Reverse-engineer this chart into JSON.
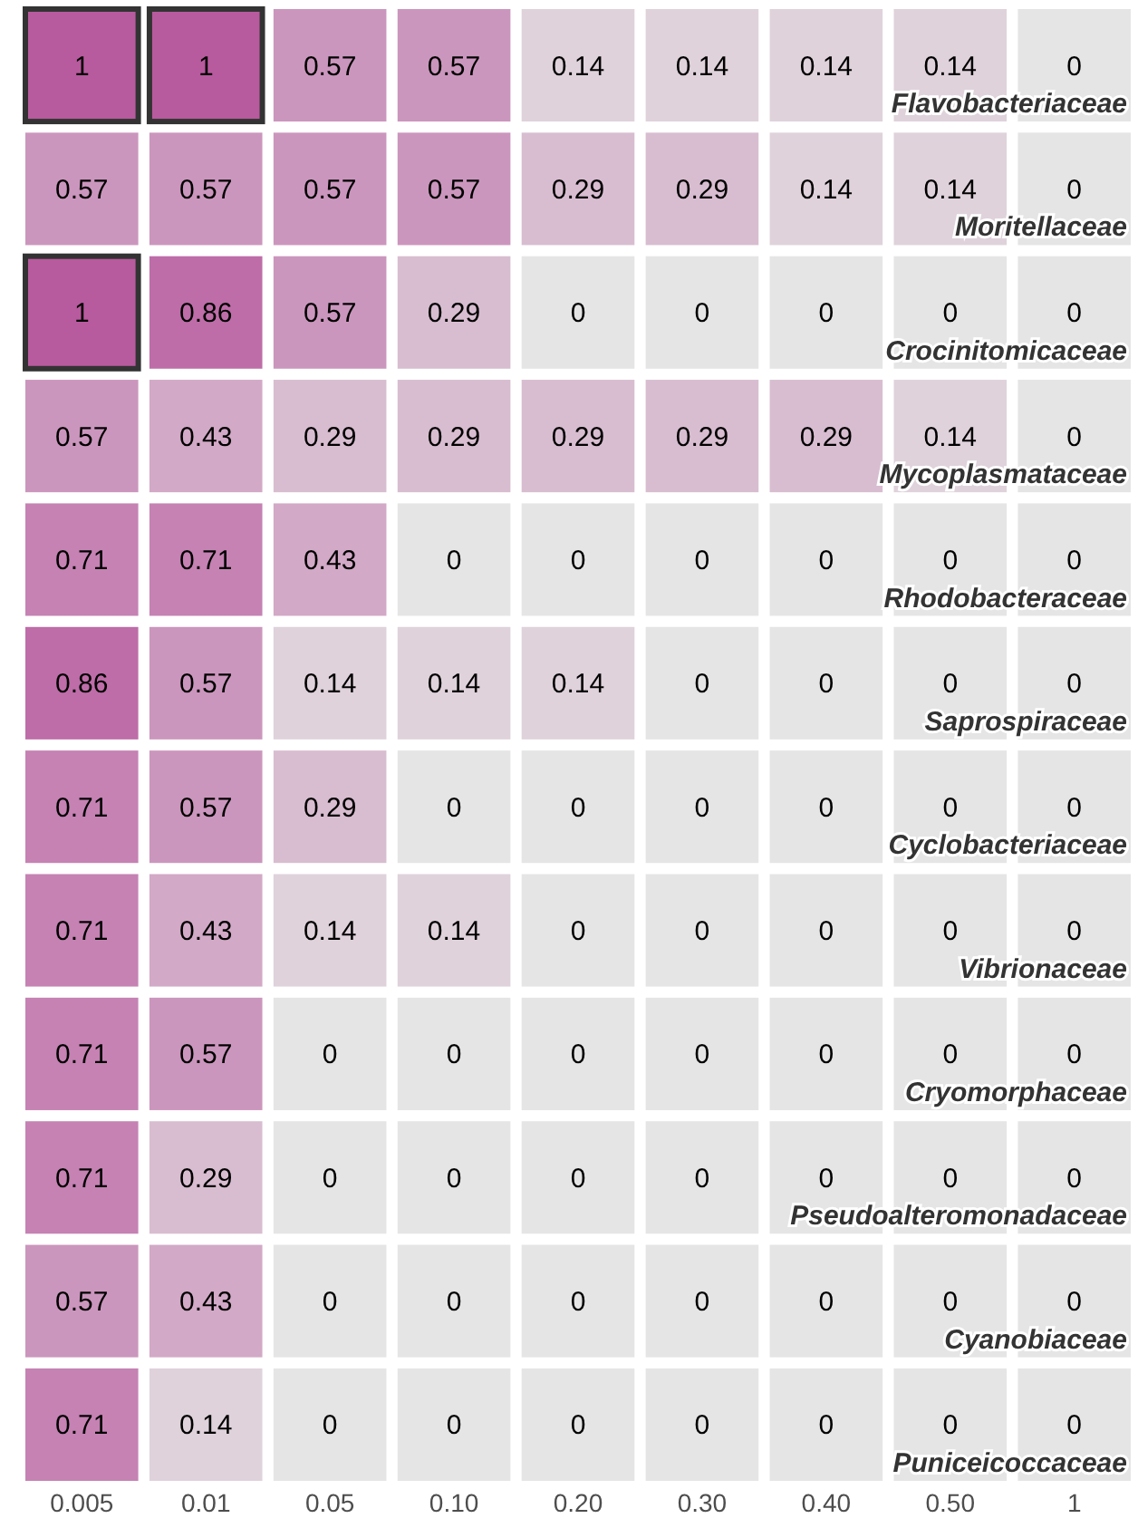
{
  "chart_data": {
    "type": "heatmap",
    "data_labels": true,
    "categories": [
      "0.005",
      "0.01",
      "0.05",
      "0.10",
      "0.20",
      "0.30",
      "0.40",
      "0.50",
      "1"
    ],
    "y_categories": [
      "Flavobacteriaceae",
      "Moritellaceae",
      "Crocinitomicaceae",
      "Mycoplasmataceae",
      "Rhodobacteraceae",
      "Saprospiraceae",
      "Cyclobacteriaceae",
      "Vibrionaceae",
      "Cryomorphaceae",
      "Pseudoalteromonadaceae",
      "Cyanobiaceae",
      "Puniceicoccaceae"
    ],
    "cells": [
      [
        1,
        1,
        0.57,
        0.57,
        0.14,
        0.14,
        0.14,
        0.14,
        0
      ],
      [
        0.57,
        0.57,
        0.57,
        0.57,
        0.29,
        0.29,
        0.14,
        0.14,
        0
      ],
      [
        1,
        0.86,
        0.57,
        0.29,
        0,
        0,
        0,
        0,
        0
      ],
      [
        0.57,
        0.43,
        0.29,
        0.29,
        0.29,
        0.29,
        0.29,
        0.14,
        0
      ],
      [
        0.71,
        0.71,
        0.43,
        0,
        0,
        0,
        0,
        0,
        0
      ],
      [
        0.86,
        0.57,
        0.14,
        0.14,
        0.14,
        0,
        0,
        0,
        0
      ],
      [
        0.71,
        0.57,
        0.29,
        0,
        0,
        0,
        0,
        0,
        0
      ],
      [
        0.71,
        0.43,
        0.14,
        0.14,
        0,
        0,
        0,
        0,
        0
      ],
      [
        0.71,
        0.57,
        0,
        0,
        0,
        0,
        0,
        0,
        0
      ],
      [
        0.71,
        0.29,
        0,
        0,
        0,
        0,
        0,
        0,
        0
      ],
      [
        0.57,
        0.43,
        0,
        0,
        0,
        0,
        0,
        0,
        0
      ],
      [
        0.71,
        0.14,
        0,
        0,
        0,
        0,
        0,
        0,
        0
      ]
    ]
  }
}
